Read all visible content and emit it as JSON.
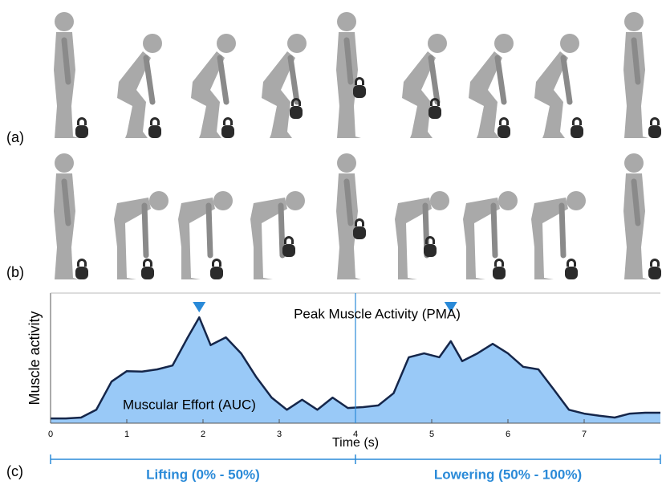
{
  "panel_labels": {
    "a": "(a)",
    "b": "(b)",
    "c": "(c)"
  },
  "chart_data": {
    "type": "area",
    "ylabel": "Muscle activity",
    "xlabel": "Time (s)",
    "annotations": {
      "peak": "Peak Muscle Activity (PMA)",
      "effort": "Muscular Effort (AUC)"
    },
    "phases": {
      "lifting": "Lifting (0% - 50%)",
      "lowering": "Lowering (50% - 100%)"
    },
    "x": [
      0,
      0.2,
      0.4,
      0.6,
      0.8,
      1.0,
      1.2,
      1.4,
      1.6,
      1.8,
      1.95,
      2.1,
      2.3,
      2.5,
      2.7,
      2.9,
      3.1,
      3.3,
      3.5,
      3.7,
      3.9,
      4.1,
      4.3,
      4.5,
      4.7,
      4.9,
      5.1,
      5.25,
      5.4,
      5.6,
      5.8,
      6.0,
      6.2,
      6.4,
      6.6,
      6.8,
      7.0,
      7.2,
      7.4,
      7.6,
      7.8,
      8.0
    ],
    "values": [
      0.11,
      0.11,
      0.13,
      0.31,
      0.96,
      1.2,
      1.19,
      1.24,
      1.33,
      1.98,
      2.44,
      1.8,
      1.98,
      1.61,
      1.06,
      0.59,
      0.31,
      0.54,
      0.31,
      0.59,
      0.35,
      0.37,
      0.41,
      0.69,
      1.52,
      1.61,
      1.52,
      1.89,
      1.43,
      1.61,
      1.83,
      1.61,
      1.3,
      1.24,
      0.78,
      0.31,
      0.22,
      0.17,
      0.13,
      0.22,
      0.24,
      0.24
    ],
    "fill_color": "#99c9f7",
    "line_color": "#15264a",
    "accent_color": "#2a8ad8",
    "peak_markers_x": [
      1.95,
      5.25
    ],
    "divider_x": 4,
    "xlim": [
      0,
      8
    ],
    "ylim": [
      0,
      3
    ],
    "xticks": [
      0,
      1,
      2,
      3,
      4,
      5,
      6,
      7
    ]
  }
}
